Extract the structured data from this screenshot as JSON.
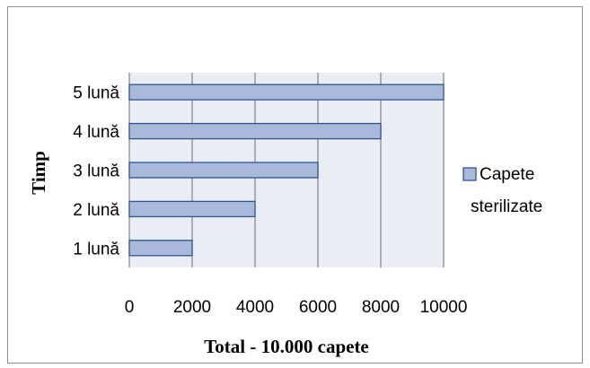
{
  "chart_data": {
    "type": "bar",
    "orientation": "horizontal",
    "categories": [
      "1 lună",
      "2 lună",
      "3 lună",
      "4 lună",
      "5 lună"
    ],
    "series": [
      {
        "name": "Capete sterilizate",
        "values": [
          2000,
          4000,
          6000,
          8000,
          10000
        ]
      }
    ],
    "xlabel": "Total - 10.000 capete",
    "ylabel": "Timp",
    "xlim": [
      0,
      10000
    ],
    "x_ticks": [
      "0",
      "2000",
      "4000",
      "6000",
      "8000",
      "10000"
    ],
    "grid": true,
    "legend": {
      "position": "right",
      "label_lines": [
        "Capete",
        "sterilizate"
      ]
    },
    "colors": {
      "bar_fill": "#a9b9d9",
      "bar_stroke": "#2e5596",
      "plot_background": "#e9edf4",
      "grid": "#858585"
    }
  }
}
